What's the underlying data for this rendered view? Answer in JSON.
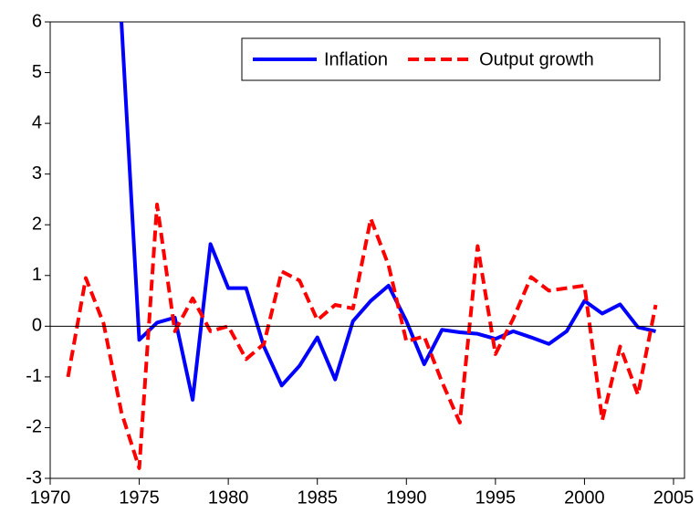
{
  "chart_data": {
    "type": "line",
    "x": [
      1971,
      1972,
      1973,
      1974,
      1975,
      1976,
      1977,
      1978,
      1979,
      1980,
      1981,
      1982,
      1983,
      1984,
      1985,
      1986,
      1987,
      1988,
      1989,
      1990,
      1991,
      1992,
      1993,
      1994,
      1995,
      1996,
      1997,
      1998,
      1999,
      2000,
      2001,
      2002,
      2003,
      2004
    ],
    "series": [
      {
        "name": "Inflation",
        "color": "#0000ff",
        "dash": false,
        "values": [
          null,
          null,
          null,
          6,
          -0.27,
          0.07,
          0.17,
          -1.45,
          1.62,
          0.75,
          0.75,
          -0.4,
          -1.17,
          -0.78,
          -0.22,
          -1.05,
          0.1,
          0.5,
          0.8,
          0.1,
          -0.75,
          -0.07,
          -0.12,
          -0.15,
          -0.25,
          -0.1,
          -0.22,
          -0.35,
          -0.1,
          0.5,
          0.25,
          0.43,
          -0.02,
          -0.1
        ]
      },
      {
        "name": "Output growth",
        "color": "#ff0000",
        "dash": true,
        "values": [
          -1.0,
          0.95,
          0.05,
          -1.7,
          -2.8,
          2.4,
          -0.1,
          0.55,
          -0.1,
          0.0,
          -0.65,
          -0.35,
          1.08,
          0.9,
          0.12,
          0.42,
          0.35,
          2.12,
          1.2,
          -0.3,
          -0.2,
          -1.1,
          -1.9,
          1.58,
          -0.55,
          0.15,
          0.97,
          0.7,
          0.75,
          0.8,
          -1.85,
          -0.4,
          -1.35,
          0.42
        ]
      }
    ],
    "xlim": [
      1970,
      2005
    ],
    "xticks": [
      1970,
      1975,
      1980,
      1985,
      1990,
      1995,
      2000,
      2005
    ],
    "ylim": [
      -3,
      6
    ],
    "yticks": [
      -3,
      -2,
      -1,
      0,
      1,
      2,
      3,
      4,
      5,
      6
    ],
    "legend": "top-right"
  }
}
